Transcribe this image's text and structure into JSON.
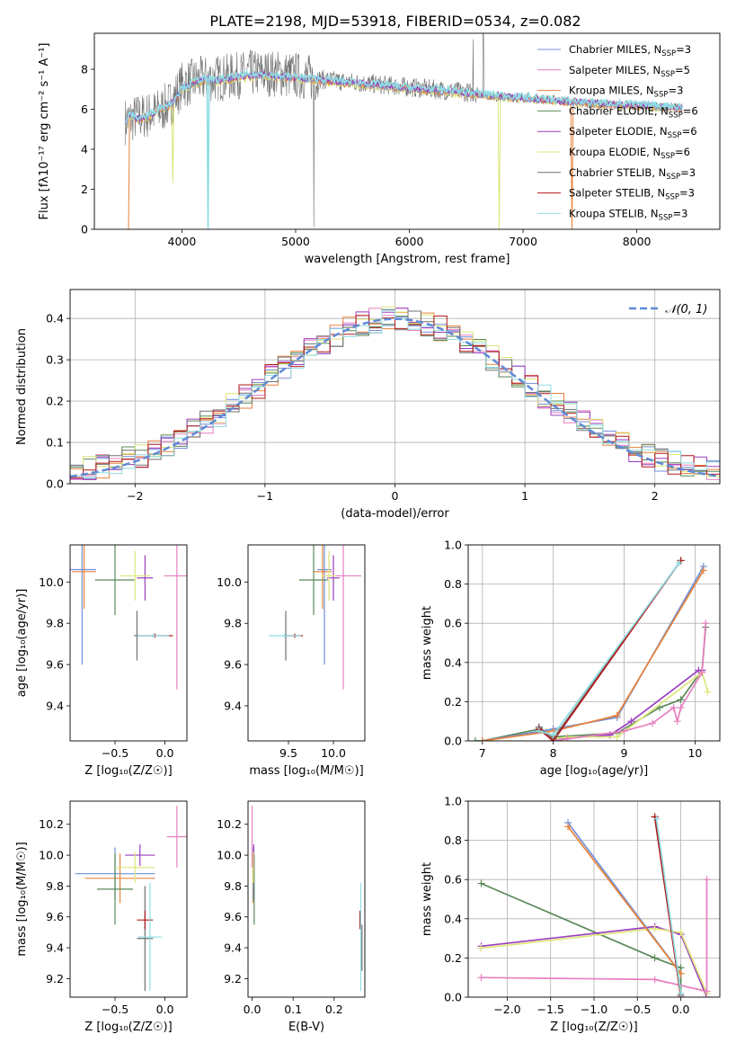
{
  "figure_title": "PLATE=2198, MJD=53918, FIBERID=0534, z=0.082",
  "colors": {
    "Chabrier MILES": "#6f8fd8",
    "Salpeter MILES": "#e77fc0",
    "Kroupa MILES": "#e8823a",
    "Chabrier ELODIE": "#5a8a5a",
    "Salpeter ELODIE": "#9b3fbf",
    "Kroupa ELODIE": "#dde67a",
    "Chabrier STELIB": "#707070",
    "Salpeter STELIB": "#b21a1a",
    "Kroupa STELIB": "#8fdde3",
    "gauss": "#5f8ad6"
  },
  "chart_data": [
    {
      "id": "spectrum",
      "type": "line",
      "xlabel": "wavelength [Angstrom, rest frame]",
      "ylabel": "Flux [fλ10⁻¹⁷ erg cm⁻² s⁻¹ A⁻¹]",
      "xlim": [
        3230,
        8730
      ],
      "ylim": [
        0,
        9.8
      ],
      "xticks": [
        4000,
        5000,
        6000,
        7000,
        8000
      ],
      "yticks": [
        0,
        2,
        4,
        6,
        8
      ],
      "legend_position": "top-right",
      "legend": [
        {
          "name": "Chabrier MILES, N",
          "sub": "SSP",
          "tail": "=3"
        },
        {
          "name": "Salpeter MILES, N",
          "sub": "SSP",
          "tail": "=5"
        },
        {
          "name": "Kroupa MILES, N",
          "sub": "SSP",
          "tail": "=3"
        },
        {
          "name": "Chabrier ELODIE, N",
          "sub": "SSP",
          "tail": "=6"
        },
        {
          "name": "Salpeter ELODIE, N",
          "sub": "SSP",
          "tail": "=6"
        },
        {
          "name": "Kroupa ELODIE, N",
          "sub": "SSP",
          "tail": "=6"
        },
        {
          "name": "Chabrier STELIB, N",
          "sub": "SSP",
          "tail": "=3"
        },
        {
          "name": "Salpeter STELIB, N",
          "sub": "SSP",
          "tail": "=3"
        },
        {
          "name": "Kroupa STELIB, N",
          "sub": "SSP",
          "tail": "=3"
        }
      ],
      "data_continuum": {
        "x": [
          3500,
          3600,
          3700,
          3800,
          3900,
          4000,
          4100,
          4200,
          4400,
          4600,
          4800,
          5000,
          5200,
          5400,
          5600,
          5800,
          6000,
          6200,
          6400,
          6600,
          6800,
          7000,
          7200,
          7400,
          7600,
          7800,
          8000,
          8200,
          8400
        ],
        "y": [
          5.4,
          5.6,
          5.7,
          5.9,
          6.3,
          7.2,
          7.4,
          7.5,
          7.6,
          7.8,
          7.8,
          7.7,
          7.5,
          7.4,
          7.3,
          7.2,
          7.1,
          7.0,
          6.9,
          6.8,
          6.6,
          6.6,
          6.5,
          6.4,
          6.3,
          6.2,
          6.2,
          6.1,
          6.1
        ]
      },
      "model_curve": {
        "x": [
          3500,
          3550,
          3600,
          3700,
          3800,
          3900,
          4000,
          4100,
          4200,
          4300,
          4500,
          4700,
          4900,
          5100,
          5300,
          5500,
          5700,
          5900,
          6100,
          6300,
          6500,
          6700,
          6900,
          7100,
          7300,
          7500,
          7700,
          7900,
          8100,
          8300,
          8400
        ],
        "y": [
          5.3,
          5.7,
          5.5,
          5.6,
          6.0,
          6.2,
          7.0,
          7.3,
          7.5,
          7.4,
          7.6,
          7.7,
          7.6,
          7.5,
          7.4,
          7.3,
          7.2,
          7.1,
          7.0,
          6.9,
          6.8,
          6.7,
          6.6,
          6.5,
          6.4,
          6.3,
          6.25,
          6.2,
          6.15,
          6.1,
          6.05
        ]
      }
    },
    {
      "id": "residuals",
      "type": "bar",
      "xlabel": "(data-model)/error",
      "ylabel": "Normed distribution",
      "xlim": [
        -2.5,
        2.5
      ],
      "ylim": [
        0,
        0.47
      ],
      "xticks": [
        -2,
        -1,
        0,
        1,
        2
      ],
      "yticks": [
        0.0,
        0.1,
        0.2,
        0.3,
        0.4
      ],
      "grid": true,
      "legend_position": "top-right",
      "gauss_label": "𝒩(0, 1)",
      "bin_width": 0.1
    },
    {
      "id": "age_vs_Z",
      "type": "scatter",
      "xlabel": "Z [log₁₀(Z/Z☉)]",
      "ylabel": "age  [log₁₀(age/yr)]",
      "xlim": [
        -0.95,
        0.22
      ],
      "ylim": [
        9.23,
        10.18
      ],
      "xticks": [
        -0.5,
        0.0
      ],
      "yticks": [
        9.4,
        9.6,
        9.8,
        10.0
      ],
      "points": [
        {
          "m": "Chabrier MILES",
          "x": -0.83,
          "y": 10.06,
          "xerr": 0.14,
          "yerr": 0.46
        },
        {
          "m": "Kroupa MILES",
          "x": -0.81,
          "y": 10.05,
          "xerr": 0.12,
          "yerr": 0.18
        },
        {
          "m": "Salpeter MILES",
          "x": 0.12,
          "y": 10.03,
          "xerr": 0.13,
          "yerr": 0.55
        },
        {
          "m": "Chabrier ELODIE",
          "x": -0.5,
          "y": 10.01,
          "xerr": 0.2,
          "yerr": 0.17
        },
        {
          "m": "Salpeter ELODIE",
          "x": -0.2,
          "y": 10.02,
          "xerr": 0.08,
          "yerr": 0.11
        },
        {
          "m": "Kroupa ELODIE",
          "x": -0.3,
          "y": 10.03,
          "xerr": 0.15,
          "yerr": 0.12
        },
        {
          "m": "Chabrier STELIB",
          "x": -0.28,
          "y": 9.74,
          "xerr": 0.03,
          "yerr": 0.12
        },
        {
          "m": "Salpeter STELIB",
          "x": -0.1,
          "y": 9.74,
          "xerr": 0.18,
          "yerr": 0.01
        },
        {
          "m": "Kroupa STELIB",
          "x": -0.12,
          "y": 9.74,
          "xerr": 0.16,
          "yerr": 0.01
        }
      ]
    },
    {
      "id": "age_vs_mass",
      "type": "scatter",
      "xlabel": "mass [log₁₀(M/M☉)]",
      "ylabel": "",
      "xlim": [
        9.05,
        10.35
      ],
      "ylim": [
        9.23,
        10.18
      ],
      "xticks": [
        9.5,
        10.0
      ],
      "yticks": [
        9.4,
        9.6,
        9.8,
        10.0
      ],
      "points": [
        {
          "m": "Chabrier MILES",
          "x": 9.9,
          "y": 10.06,
          "xerr": 0.08,
          "yerr": 0.46
        },
        {
          "m": "Salpeter MILES",
          "x": 10.11,
          "y": 10.03,
          "xerr": 0.2,
          "yerr": 0.55
        },
        {
          "m": "Kroupa MILES",
          "x": 9.88,
          "y": 10.05,
          "xerr": 0.1,
          "yerr": 0.18
        },
        {
          "m": "Chabrier ELODIE",
          "x": 9.78,
          "y": 10.01,
          "xerr": 0.16,
          "yerr": 0.17
        },
        {
          "m": "Salpeter ELODIE",
          "x": 10.0,
          "y": 10.02,
          "xerr": 0.07,
          "yerr": 0.11
        },
        {
          "m": "Kroupa ELODIE",
          "x": 9.95,
          "y": 10.03,
          "xerr": 0.08,
          "yerr": 0.12
        },
        {
          "m": "Chabrier STELIB",
          "x": 9.47,
          "y": 9.74,
          "xerr": 0.02,
          "yerr": 0.12
        },
        {
          "m": "Salpeter STELIB",
          "x": 9.57,
          "y": 9.74,
          "xerr": 0.09,
          "yerr": 0.01
        },
        {
          "m": "Kroupa STELIB",
          "x": 9.46,
          "y": 9.74,
          "xerr": 0.18,
          "yerr": 0.01
        }
      ]
    },
    {
      "id": "weight_vs_age",
      "type": "line",
      "xlabel": "age  [log₁₀(age/yr)]",
      "ylabel": "mass weight",
      "xlim": [
        6.8,
        10.35
      ],
      "ylim": [
        0,
        1.0
      ],
      "xticks": [
        7,
        8,
        9,
        10
      ],
      "yticks": [
        0.0,
        0.2,
        0.4,
        0.6,
        0.8,
        1.0
      ],
      "grid": true,
      "series": [
        {
          "m": "Chabrier ELODIE",
          "x": [
            6.9,
            7.0,
            7.8,
            8.0,
            8.9,
            9.5,
            9.8,
            10.1,
            10.15
          ],
          "y": [
            0.0,
            0.0,
            0.06,
            0.02,
            0.04,
            0.17,
            0.21,
            0.36,
            0.58
          ]
        },
        {
          "m": "Salpeter ELODIE",
          "x": [
            7.8,
            8.0,
            8.8,
            9.1,
            10.05,
            10.1
          ],
          "y": [
            0.07,
            0.01,
            0.03,
            0.1,
            0.36,
            0.36
          ]
        },
        {
          "m": "Kroupa ELODIE",
          "x": [
            7.9,
            8.0,
            8.2,
            8.9,
            10.1,
            10.18
          ],
          "y": [
            0.05,
            0.01,
            0.02,
            0.02,
            0.35,
            0.25
          ]
        },
        {
          "m": "Salpeter MILES",
          "x": [
            8.0,
            8.2,
            9.0,
            9.4,
            9.7,
            9.75,
            9.8,
            10.1,
            10.15
          ],
          "y": [
            0.0,
            0.01,
            0.05,
            0.09,
            0.17,
            0.1,
            0.17,
            0.35,
            0.6
          ]
        },
        {
          "m": "Chabrier MILES",
          "x": [
            7.0,
            8.0,
            8.9,
            10.12
          ],
          "y": [
            0.0,
            0.06,
            0.12,
            0.89
          ]
        },
        {
          "m": "Kroupa MILES",
          "x": [
            7.0,
            8.0,
            8.9,
            10.12
          ],
          "y": [
            0.0,
            0.05,
            0.13,
            0.87
          ]
        },
        {
          "m": "Chabrier STELIB",
          "x": [
            7.8,
            8.0,
            9.8
          ],
          "y": [
            0.07,
            0.01,
            0.92
          ]
        },
        {
          "m": "Salpeter STELIB",
          "x": [
            7.8,
            8.0,
            9.8
          ],
          "y": [
            0.06,
            0.0,
            0.92
          ]
        },
        {
          "m": "Kroupa STELIB",
          "x": [
            7.8,
            8.0,
            9.78
          ],
          "y": [
            0.05,
            0.03,
            0.91
          ]
        }
      ]
    },
    {
      "id": "mass_vs_Z",
      "type": "scatter",
      "xlabel": "Z [log₁₀(Z/Z☉)]",
      "ylabel": "mass [log₁₀(M/M☉)]",
      "xlim": [
        -0.95,
        0.22
      ],
      "ylim": [
        9.08,
        10.35
      ],
      "xticks": [
        -0.5,
        0.0
      ],
      "yticks": [
        9.2,
        9.4,
        9.6,
        9.8,
        10.0,
        10.2
      ],
      "points": [
        {
          "m": "Chabrier MILES",
          "x": -0.5,
          "y": 9.88,
          "xerr": 0.4,
          "yerr": 0.17
        },
        {
          "m": "Kroupa MILES",
          "x": -0.45,
          "y": 9.85,
          "xerr": 0.35,
          "yerr": 0.16
        },
        {
          "m": "Salpeter MILES",
          "x": 0.12,
          "y": 10.12,
          "xerr": 0.1,
          "yerr": 0.2
        },
        {
          "m": "Chabrier ELODIE",
          "x": -0.5,
          "y": 9.78,
          "xerr": 0.18,
          "yerr": 0.23
        },
        {
          "m": "Salpeter ELODIE",
          "x": -0.25,
          "y": 10.0,
          "xerr": 0.15,
          "yerr": 0.07
        },
        {
          "m": "Kroupa ELODIE",
          "x": -0.3,
          "y": 9.92,
          "xerr": 0.2,
          "yerr": 0.1
        },
        {
          "m": "Chabrier STELIB",
          "x": -0.2,
          "y": 9.46,
          "xerr": 0.08,
          "yerr": 0.34
        },
        {
          "m": "Salpeter STELIB",
          "x": -0.2,
          "y": 9.58,
          "xerr": 0.08,
          "yerr": 0.06
        },
        {
          "m": "Kroupa STELIB",
          "x": -0.15,
          "y": 9.47,
          "xerr": 0.12,
          "yerr": 0.35
        }
      ]
    },
    {
      "id": "mass_vs_ebv",
      "type": "scatter",
      "xlabel": "E(B-V)",
      "ylabel": "",
      "xlim": [
        -0.01,
        0.275
      ],
      "ylim": [
        9.08,
        10.35
      ],
      "xticks": [
        0.0,
        0.1,
        0.2
      ],
      "yticks": [
        9.2,
        9.4,
        9.6,
        9.8,
        10.0,
        10.2
      ],
      "points": [
        {
          "m": "Salpeter MILES",
          "x": 0.0,
          "y": 10.12,
          "xerr": 0.0,
          "yerr": 0.2
        },
        {
          "m": "Kroupa MILES",
          "x": 0.002,
          "y": 9.85,
          "xerr": 0.0,
          "yerr": 0.16
        },
        {
          "m": "Chabrier MILES",
          "x": 0.003,
          "y": 9.88,
          "xerr": 0.0,
          "yerr": 0.17
        },
        {
          "m": "Chabrier ELODIE",
          "x": 0.005,
          "y": 9.78,
          "xerr": 0.0,
          "yerr": 0.23
        },
        {
          "m": "Salpeter ELODIE",
          "x": 0.004,
          "y": 10.0,
          "xerr": 0.0,
          "yerr": 0.07
        },
        {
          "m": "Kroupa ELODIE",
          "x": 0.003,
          "y": 9.92,
          "xerr": 0.0,
          "yerr": 0.1
        },
        {
          "m": "Chabrier STELIB",
          "x": 0.268,
          "y": 9.4,
          "xerr": 0.0,
          "yerr": 0.15
        },
        {
          "m": "Salpeter STELIB",
          "x": 0.263,
          "y": 9.58,
          "xerr": 0.0,
          "yerr": 0.06
        },
        {
          "m": "Kroupa STELIB",
          "x": 0.265,
          "y": 9.47,
          "xerr": 0.0,
          "yerr": 0.35
        }
      ]
    },
    {
      "id": "weight_vs_Z",
      "type": "line",
      "xlabel": "Z [log₁₀(Z/Z☉)]",
      "ylabel": "mass weight",
      "xlim": [
        -2.45,
        0.45
      ],
      "ylim": [
        0,
        1.0
      ],
      "xticks": [
        -2.0,
        -1.5,
        -1.0,
        -0.5,
        0.0
      ],
      "yticks": [
        0.0,
        0.2,
        0.4,
        0.6,
        0.8,
        1.0
      ],
      "grid": true,
      "series": [
        {
          "m": "Chabrier ELODIE",
          "x": [
            -2.3,
            -0.3,
            0.0,
            0.0
          ],
          "y": [
            0.58,
            0.2,
            0.15,
            0.0
          ]
        },
        {
          "m": "Salpeter ELODIE",
          "x": [
            -2.3,
            -0.3,
            0.0,
            0.3
          ],
          "y": [
            0.26,
            0.36,
            0.32,
            0.0
          ]
        },
        {
          "m": "Kroupa ELODIE",
          "x": [
            -2.3,
            -0.3,
            0.0,
            0.3
          ],
          "y": [
            0.25,
            0.35,
            0.33,
            0.02
          ]
        },
        {
          "m": "Salpeter MILES",
          "x": [
            -2.3,
            -0.3,
            0.3,
            0.3
          ],
          "y": [
            0.1,
            0.09,
            0.03,
            0.6
          ]
        },
        {
          "m": "Chabrier MILES",
          "x": [
            -1.3,
            0.0
          ],
          "y": [
            0.89,
            0.12
          ]
        },
        {
          "m": "Kroupa MILES",
          "x": [
            -1.3,
            0.0
          ],
          "y": [
            0.87,
            0.12
          ]
        },
        {
          "m": "Chabrier STELIB",
          "x": [
            -0.3,
            0.0
          ],
          "y": [
            0.92,
            0.01
          ]
        },
        {
          "m": "Salpeter STELIB",
          "x": [
            -0.3,
            0.0
          ],
          "y": [
            0.92,
            0.0
          ]
        },
        {
          "m": "Kroupa STELIB",
          "x": [
            -0.28,
            0.0
          ],
          "y": [
            0.91,
            0.02
          ]
        }
      ]
    }
  ]
}
